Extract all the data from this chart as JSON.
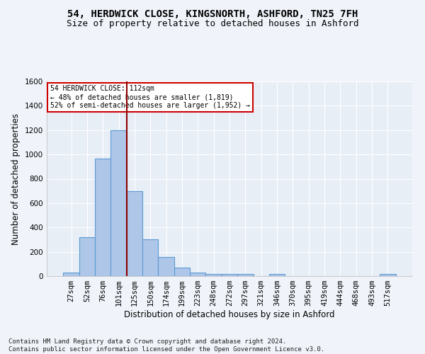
{
  "title1": "54, HERDWICK CLOSE, KINGSNORTH, ASHFORD, TN25 7FH",
  "title2": "Size of property relative to detached houses in Ashford",
  "xlabel": "Distribution of detached houses by size in Ashford",
  "ylabel": "Number of detached properties",
  "footnote": "Contains HM Land Registry data © Crown copyright and database right 2024.\nContains public sector information licensed under the Open Government Licence v3.0.",
  "categories": [
    "27sqm",
    "52sqm",
    "76sqm",
    "101sqm",
    "125sqm",
    "150sqm",
    "174sqm",
    "199sqm",
    "223sqm",
    "248sqm",
    "272sqm",
    "297sqm",
    "321sqm",
    "346sqm",
    "370sqm",
    "395sqm",
    "419sqm",
    "444sqm",
    "468sqm",
    "493sqm",
    "517sqm"
  ],
  "values": [
    30,
    320,
    965,
    1200,
    700,
    305,
    155,
    70,
    28,
    20,
    15,
    15,
    0,
    15,
    0,
    0,
    0,
    0,
    0,
    0,
    15
  ],
  "bar_color": "#aec6e8",
  "bar_edge_color": "#5b9bd5",
  "vline_x": 3.5,
  "vline_color": "#8b0000",
  "annotation_text": "54 HERDWICK CLOSE: 112sqm\n← 48% of detached houses are smaller (1,819)\n52% of semi-detached houses are larger (1,952) →",
  "annotation_box_color": "#ffffff",
  "annotation_box_edge_color": "#cc0000",
  "ylim": [
    0,
    1600
  ],
  "yticks": [
    0,
    200,
    400,
    600,
    800,
    1000,
    1200,
    1400,
    1600
  ],
  "bg_color": "#e8eef6",
  "fig_color": "#f0f4fa",
  "grid_color": "#ffffff",
  "title1_fontsize": 10,
  "title2_fontsize": 9,
  "tick_fontsize": 7.5,
  "ylabel_fontsize": 8.5,
  "xlabel_fontsize": 8.5,
  "footnote_fontsize": 6.5
}
